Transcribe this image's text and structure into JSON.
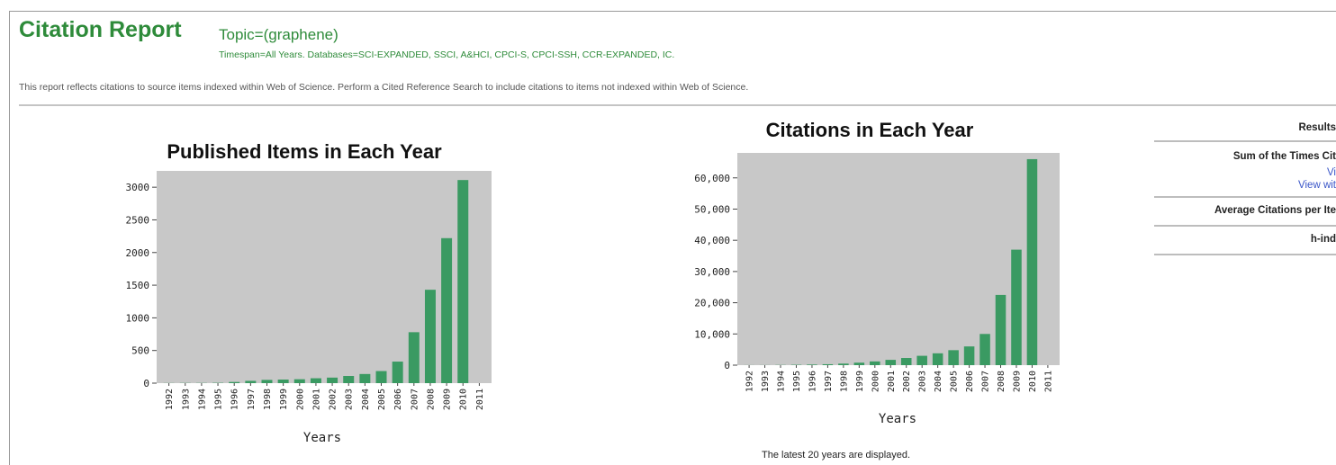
{
  "report": {
    "title": "Citation Report",
    "topic": "Topic=(graphene)",
    "meta": "Timespan=All Years. Databases=SCI-EXPANDED, SSCI, A&HCI, CPCI-S, CPCI-SSH, CCR-EXPANDED, IC.",
    "note": "This report reflects citations to source items indexed within Web of Science. Perform a Cited Reference Search to include citations to items not indexed within Web of Science."
  },
  "panel": {
    "header": "Results",
    "sum_label": "Sum of the Times Cit",
    "link1": "Vi",
    "link2": "View wit",
    "avg_label": "Average Citations per Ite",
    "hindex_label": "h-ind"
  },
  "latest_note": "The latest 20 years are displayed.",
  "colors": {
    "accent": "#2e8b3a",
    "bar": "#3a9a62",
    "plot_bg": "#c8c8c8",
    "link": "#3a56c8"
  },
  "chart_data": [
    {
      "type": "bar",
      "title": "Published Items in Each Year",
      "xlabel": "Years",
      "ylabel": "",
      "categories": [
        "1992",
        "1993",
        "1994",
        "1995",
        "1996",
        "1997",
        "1998",
        "1999",
        "2000",
        "2001",
        "2002",
        "2003",
        "2004",
        "2005",
        "2006",
        "2007",
        "2008",
        "2009",
        "2010",
        "2011"
      ],
      "values": [
        2,
        3,
        3,
        5,
        18,
        35,
        50,
        55,
        60,
        75,
        85,
        110,
        140,
        185,
        330,
        780,
        1430,
        2220,
        3110,
        0
      ],
      "ylim": [
        0,
        3250
      ],
      "yticks": [
        0,
        500,
        1000,
        1500,
        2000,
        2500,
        3000
      ],
      "ytick_labels": [
        "0",
        "500",
        "1000",
        "1500",
        "2000",
        "2500",
        "3000"
      ],
      "grid": false
    },
    {
      "type": "bar",
      "title": "Citations in Each Year",
      "xlabel": "Years",
      "ylabel": "",
      "categories": [
        "1992",
        "1993",
        "1994",
        "1995",
        "1996",
        "1997",
        "1998",
        "1999",
        "2000",
        "2001",
        "2002",
        "2003",
        "2004",
        "2005",
        "2006",
        "2007",
        "2008",
        "2009",
        "2010",
        "2011"
      ],
      "values": [
        20,
        30,
        60,
        120,
        200,
        300,
        500,
        800,
        1200,
        1700,
        2300,
        3000,
        3800,
        4800,
        6000,
        10000,
        22500,
        37000,
        66000,
        0
      ],
      "ylim": [
        0,
        68000
      ],
      "yticks": [
        0,
        10000,
        20000,
        30000,
        40000,
        50000,
        60000
      ],
      "ytick_labels": [
        "0",
        "10,000",
        "20,000",
        "30,000",
        "40,000",
        "50,000",
        "60,000"
      ],
      "grid": false
    }
  ]
}
